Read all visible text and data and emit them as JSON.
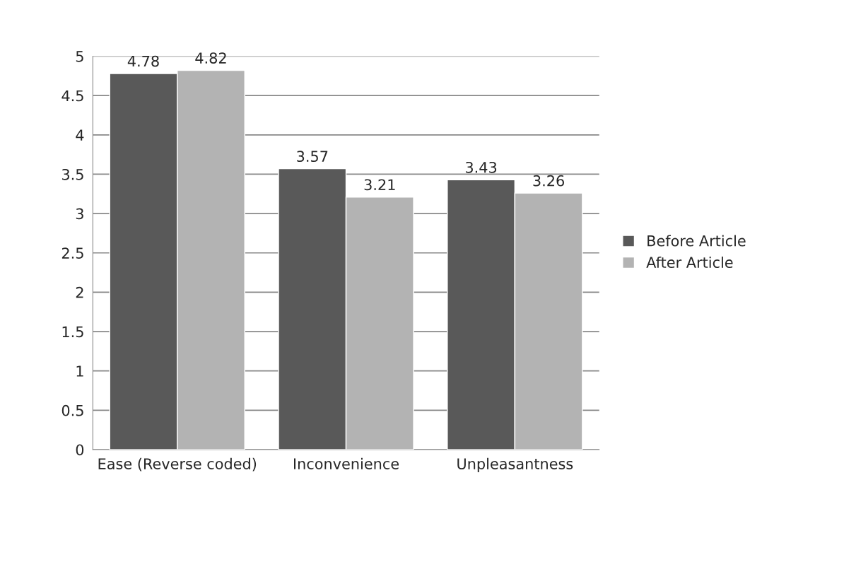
{
  "chart_data": {
    "type": "bar",
    "categories": [
      "Ease (Reverse coded)",
      "Inconvenience",
      "Unpleasantness"
    ],
    "series": [
      {
        "name": "Before Article",
        "color": "#595959",
        "values": [
          4.78,
          3.57,
          3.43
        ]
      },
      {
        "name": "After Article",
        "color": "#b3b3b3",
        "values": [
          4.82,
          3.21,
          3.26
        ]
      }
    ],
    "ylim": [
      0,
      5
    ],
    "yticks": [
      0,
      0.5,
      1,
      1.5,
      2,
      2.5,
      3,
      3.5,
      4,
      4.5,
      5
    ],
    "grid": "y",
    "legend": "right",
    "data_labels": true
  }
}
